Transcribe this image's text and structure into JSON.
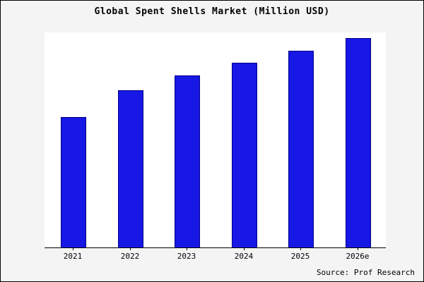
{
  "chart_data": {
    "type": "bar",
    "title": "Global Spent Shells Market (Million USD)",
    "categories": [
      "2021",
      "2022",
      "2023",
      "2024",
      "2025",
      "2026e"
    ],
    "values": [
      62,
      75,
      82,
      88,
      94,
      100
    ],
    "xlabel": "",
    "ylabel": "",
    "ylim": [
      0,
      103
    ],
    "grid": false,
    "legend": false,
    "bar_color": "#1717e6",
    "bar_edge_color": "#00008b",
    "background_color": "#f4f4f4",
    "plot_background_color": "#ffffff",
    "source": "Source: Prof Research"
  }
}
